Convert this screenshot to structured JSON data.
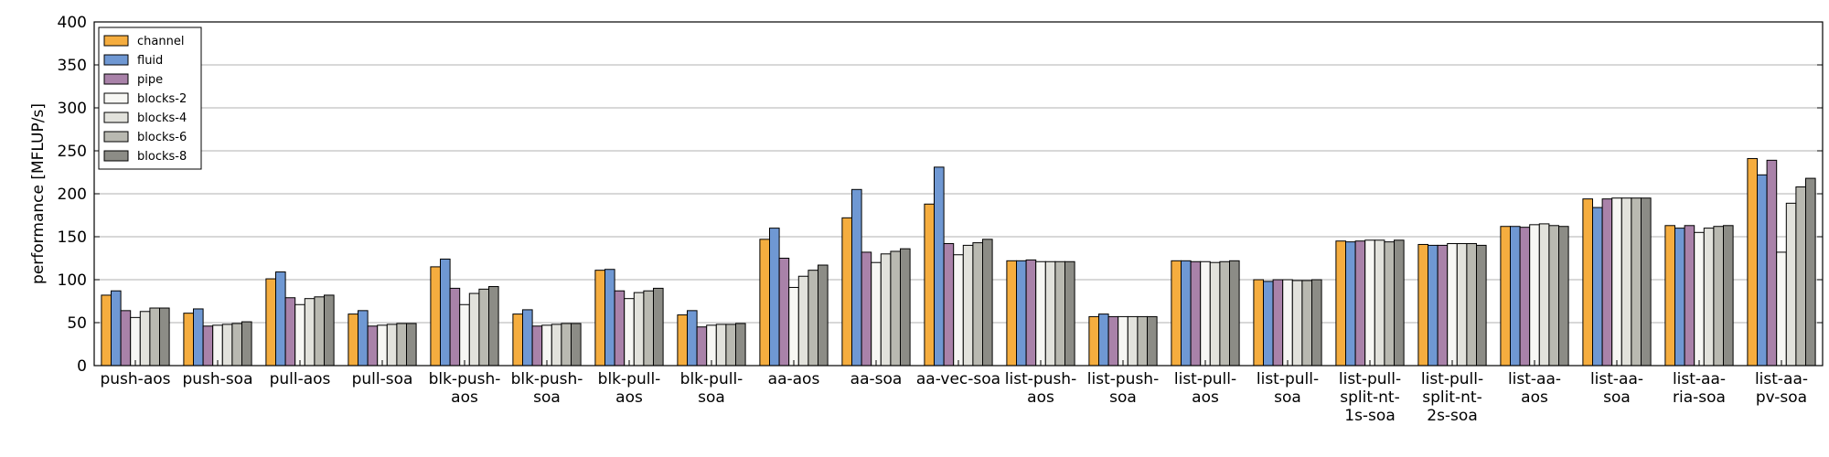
{
  "chart_data": {
    "type": "bar",
    "title": "",
    "xlabel": "",
    "ylabel": "performance [MFLUP/s]",
    "ylim": [
      0,
      400
    ],
    "yticks": [
      0,
      50,
      100,
      150,
      200,
      250,
      300,
      350,
      400
    ],
    "grid": "horizontal",
    "legend_position": "top-left",
    "categories": [
      "push-aos",
      "push-soa",
      "pull-aos",
      "pull-soa",
      "blk-push-aos",
      "blk-push-soa",
      "blk-pull-aos",
      "blk-pull-soa",
      "aa-aos",
      "aa-soa",
      "aa-vec-soa",
      "list-push-aos",
      "list-push-soa",
      "list-pull-aos",
      "list-pull-soa",
      "list-pull-split-nt-1s-soa",
      "list-pull-split-nt-2s-soa",
      "list-aa-aos",
      "list-aa-soa",
      "list-aa-ria-soa",
      "list-aa-pv-soa"
    ],
    "category_label_lines": [
      [
        "push-aos"
      ],
      [
        "push-soa"
      ],
      [
        "pull-aos"
      ],
      [
        "pull-soa"
      ],
      [
        "blk-push-",
        "aos"
      ],
      [
        "blk-push-",
        "soa"
      ],
      [
        "blk-pull-",
        "aos"
      ],
      [
        "blk-pull-",
        "soa"
      ],
      [
        "aa-aos"
      ],
      [
        "aa-soa"
      ],
      [
        "aa-vec-soa"
      ],
      [
        "list-push-",
        "aos"
      ],
      [
        "list-push-",
        "soa"
      ],
      [
        "list-pull-",
        "aos"
      ],
      [
        "list-pull-",
        "soa"
      ],
      [
        "list-pull-",
        "split-nt-",
        "1s-soa"
      ],
      [
        "list-pull-",
        "split-nt-",
        "2s-soa"
      ],
      [
        "list-aa-",
        "aos"
      ],
      [
        "list-aa-",
        "soa"
      ],
      [
        "list-aa-",
        "ria-soa"
      ],
      [
        "list-aa-",
        "pv-soa"
      ]
    ],
    "series": [
      {
        "name": "channel",
        "color": "#f5ad3f",
        "values": [
          82,
          61,
          101,
          60,
          115,
          60,
          111,
          59,
          147,
          172,
          188,
          122,
          57,
          122,
          100,
          145,
          141,
          162,
          194,
          163,
          241
        ]
      },
      {
        "name": "fluid",
        "color": "#6f98d3",
        "values": [
          87,
          66,
          109,
          64,
          124,
          65,
          112,
          64,
          160,
          205,
          231,
          122,
          60,
          122,
          98,
          144,
          140,
          162,
          184,
          160,
          222
        ]
      },
      {
        "name": "pipe",
        "color": "#a982a9",
        "values": [
          64,
          46,
          79,
          46,
          90,
          46,
          87,
          45,
          125,
          132,
          142,
          123,
          57,
          121,
          100,
          145,
          140,
          161,
          194,
          163,
          239
        ]
      },
      {
        "name": "blocks-2",
        "color": "#f7f7f4",
        "values": [
          56,
          47,
          71,
          47,
          71,
          47,
          78,
          47,
          91,
          120,
          129,
          121,
          57,
          121,
          100,
          146,
          142,
          164,
          195,
          155,
          132
        ]
      },
      {
        "name": "blocks-4",
        "color": "#e2e2dc",
        "values": [
          63,
          48,
          78,
          48,
          84,
          48,
          85,
          48,
          104,
          130,
          140,
          121,
          57,
          120,
          99,
          146,
          142,
          165,
          195,
          160,
          189
        ]
      },
      {
        "name": "blocks-6",
        "color": "#b9b9b1",
        "values": [
          67,
          49,
          80,
          49,
          89,
          49,
          87,
          48,
          111,
          133,
          143,
          121,
          57,
          121,
          99,
          144,
          142,
          163,
          195,
          162,
          208
        ]
      },
      {
        "name": "blocks-8",
        "color": "#8c8c86",
        "values": [
          67,
          51,
          82,
          49,
          92,
          49,
          90,
          49,
          117,
          136,
          147,
          121,
          57,
          122,
          100,
          146,
          140,
          162,
          195,
          163,
          218
        ]
      }
    ]
  }
}
